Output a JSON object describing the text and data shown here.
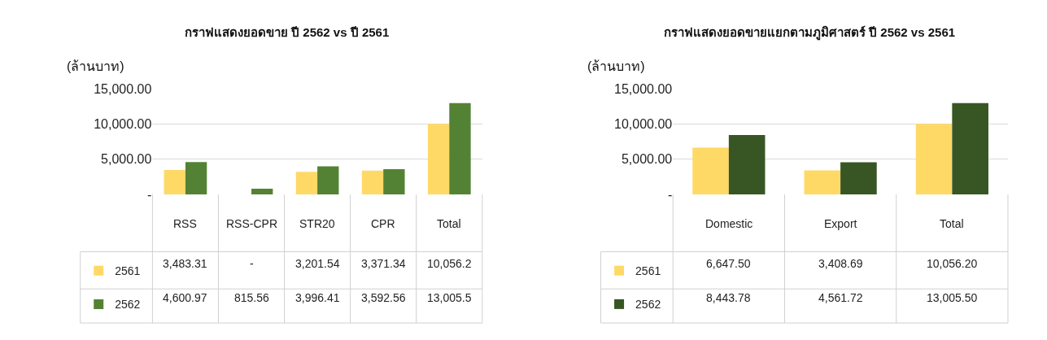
{
  "chart_data": [
    {
      "type": "bar",
      "title": "กราฟแสดงยอดขาย ปี 2562 vs ปี 2561",
      "ylabel": "(ล้านบาท)",
      "legend": "bottom left",
      "categories": [
        "RSS",
        "RSS-CPR",
        "STR20",
        "CPR",
        "Total"
      ],
      "series": [
        {
          "name": "2561",
          "color": "#ffd966",
          "values": [
            3483.31,
            0,
            3201.54,
            3371.34,
            10056.2
          ],
          "value_labels": [
            "3,483.31",
            "-",
            "3,201.54",
            "3,371.34",
            "10,056.2"
          ]
        },
        {
          "name": "2562",
          "color": "#548235",
          "values": [
            4600.97,
            815.56,
            3996.41,
            3592.56,
            13005.5
          ],
          "value_labels": [
            "4,600.97",
            "815.56",
            "3,996.41",
            "3,592.56",
            "13,005.5"
          ]
        }
      ],
      "ylim": [
        0,
        15000
      ],
      "yticks": [
        {
          "value": 0,
          "label": "-"
        },
        {
          "value": 5000,
          "label": "5,000.00"
        },
        {
          "value": 10000,
          "label": "10,000.00"
        },
        {
          "value": 15000,
          "label": "15,000.00"
        }
      ],
      "grid": "y"
    },
    {
      "type": "bar",
      "title": "กราฟแสดงยอดขายแยกตามภูมิศาสตร์ ปี 2562 vs 2561",
      "ylabel": "(ล้านบาท)",
      "legend": "bottom left",
      "categories": [
        "Domestic",
        "Export",
        "Total"
      ],
      "series": [
        {
          "name": "2561",
          "color": "#ffd966",
          "values": [
            6647.5,
            3408.69,
            10056.2
          ],
          "value_labels": [
            "6,647.50",
            "3,408.69",
            "10,056.20"
          ]
        },
        {
          "name": "2562",
          "color": "#375623",
          "values": [
            8443.78,
            4561.72,
            13005.5
          ],
          "value_labels": [
            "8,443.78",
            "4,561.72",
            "13,005.50"
          ]
        }
      ],
      "ylim": [
        0,
        15000
      ],
      "yticks": [
        {
          "value": 0,
          "label": "-"
        },
        {
          "value": 5000,
          "label": "5,000.00"
        },
        {
          "value": 10000,
          "label": "10,000.00"
        },
        {
          "value": 15000,
          "label": "15,000.00"
        }
      ],
      "grid": "y"
    }
  ]
}
